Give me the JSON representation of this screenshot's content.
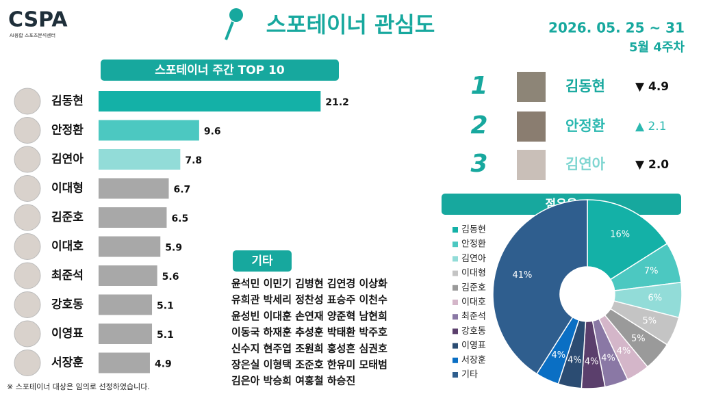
{
  "header": {
    "logo": "CSPA",
    "logo_sub": "AI융합 스포츠분석센터",
    "title": "스포테이너 관심도",
    "date": "2026. 05. 25 ~ 31",
    "week": "5월 4주차"
  },
  "chart_data": [
    {
      "type": "bar",
      "orientation": "horizontal",
      "title": "스포테이너 주간 TOP 10",
      "categories": [
        "김동현",
        "안정환",
        "김연아",
        "이대형",
        "김준호",
        "이대호",
        "최준석",
        "강호동",
        "이영표",
        "서장훈"
      ],
      "values": [
        21.2,
        9.6,
        7.8,
        6.7,
        6.5,
        5.9,
        5.6,
        5.1,
        5.1,
        4.9
      ],
      "colors": [
        "#14b1a7",
        "#4cc8c1",
        "#92dcd8",
        "#a8a8a8",
        "#a8a8a8",
        "#a8a8a8",
        "#a8a8a8",
        "#a8a8a8",
        "#a8a8a8",
        "#a8a8a8"
      ]
    },
    {
      "type": "pie",
      "title": "점유율",
      "categories": [
        "김동현",
        "안정환",
        "김연아",
        "이대형",
        "김준호",
        "이대호",
        "최준석",
        "강호동",
        "이영표",
        "서장훈",
        "기타"
      ],
      "values": [
        16,
        7,
        6,
        5,
        5,
        4,
        4,
        4,
        4,
        4,
        41
      ],
      "value_labels": [
        "16%",
        "7%",
        "6%",
        "5%",
        "5%",
        "4%",
        "4%",
        "4%",
        "4%",
        "4%",
        "41%"
      ],
      "colors": [
        "#14b1a7",
        "#4cc8c1",
        "#92dcd8",
        "#c4c4c4",
        "#9a9a9a",
        "#d4b6c9",
        "#8a78a5",
        "#5b3f6c",
        "#2b4c72",
        "#0a6fc4",
        "#2f5e8e"
      ],
      "legend": "left"
    }
  ],
  "ranking": [
    {
      "rank": "1",
      "name": "김동현",
      "change": "▼ 4.9"
    },
    {
      "rank": "2",
      "name": "안정환",
      "change": "▲ 2.1"
    },
    {
      "rank": "3",
      "name": "김연아",
      "change": "▼ 2.0"
    }
  ],
  "others": {
    "title": "기타",
    "lines": [
      "윤석민 이민기 김병현 김연경 이상화",
      "유희관 박세리 정찬성 표승주 이천수",
      "윤성빈 이대훈 손연재 양준혁 남현희",
      "이동국 하재훈 추성훈 박태환 박주호",
      "신수지 현주엽 조원희 홍성흔 심권호",
      "장은실 이형택 조준호 한유미 모태범",
      "김은아 박승희 여홍철 하승진"
    ]
  },
  "footnote": "※ 스포테이너 대상은 임의로 선정하였습니다."
}
